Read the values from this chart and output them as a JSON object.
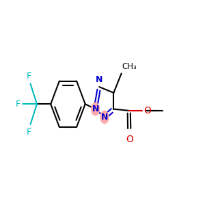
{
  "background_color": "#ffffff",
  "figure_size": [
    3.0,
    3.0
  ],
  "dpi": 100,
  "xlim": [
    0.0,
    1.0
  ],
  "ylim": [
    0.2,
    0.85
  ],
  "bond_lw": 1.5,
  "bond_color_black": "#000000",
  "bond_color_blue": "#0000cc",
  "bond_color_red": "#dd0000",
  "bond_color_cyan": "#00bbbb",
  "N_circle_color": "#ffaaaa",
  "N_text_color": "#0000cc",
  "F_color": "#00bbbb",
  "O_color": "#dd0000"
}
